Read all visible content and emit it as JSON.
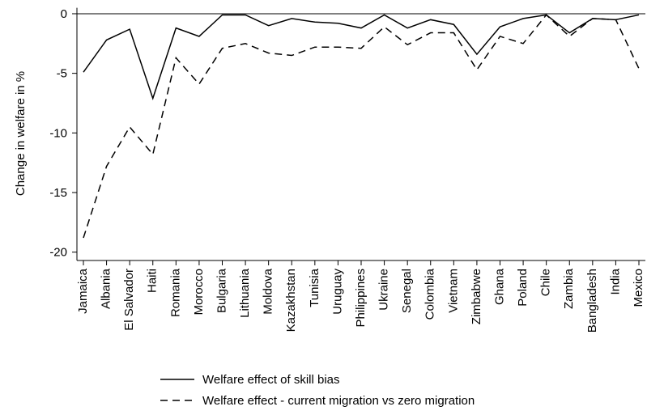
{
  "chart_data": {
    "type": "line",
    "y_label": "Change in welfare in %",
    "categories": [
      "Jamaica",
      "Albania",
      "El Salvador",
      "Haiti",
      "Romania",
      "Morocco",
      "Bulgaria",
      "Lithuania",
      "Moldova",
      "Kazakhstan",
      "Tunisia",
      "Uruguay",
      "Philippines",
      "Ukraine",
      "Senegal",
      "Colombia",
      "Vietnam",
      "Zimbabwe",
      "Ghana",
      "Poland",
      "Chile",
      "Zambia",
      "Bangladesh",
      "India",
      "Mexico"
    ],
    "series": [
      {
        "name": "Welfare effect of skill bias",
        "color": "#000000",
        "dash": "solid",
        "values": [
          -4.9,
          -2.2,
          -1.3,
          -7.1,
          -1.2,
          -1.9,
          -0.1,
          -0.1,
          -1.0,
          -0.4,
          -0.7,
          -0.8,
          -1.2,
          -0.1,
          -1.2,
          -0.5,
          -0.9,
          -3.4,
          -1.1,
          -0.4,
          -0.1,
          -1.6,
          -0.4,
          -0.5,
          -0.1
        ]
      },
      {
        "name": "Welfare effect - current migration vs zero migration",
        "color": "#000000",
        "dash": "dashed",
        "values": [
          -18.8,
          -12.8,
          -9.5,
          -11.8,
          -3.7,
          -5.9,
          -2.9,
          -2.5,
          -3.3,
          -3.5,
          -2.8,
          -2.8,
          -2.9,
          -1.1,
          -2.6,
          -1.6,
          -1.6,
          -4.7,
          -1.9,
          -2.5,
          -0.1,
          -1.9,
          -0.4,
          -0.5,
          -4.6
        ]
      }
    ],
    "ylim": [
      -20.7,
      0.5
    ],
    "yticks": [
      0,
      -5,
      -10,
      -15,
      -20
    ],
    "reference_line": 0,
    "legend": "bottom"
  }
}
